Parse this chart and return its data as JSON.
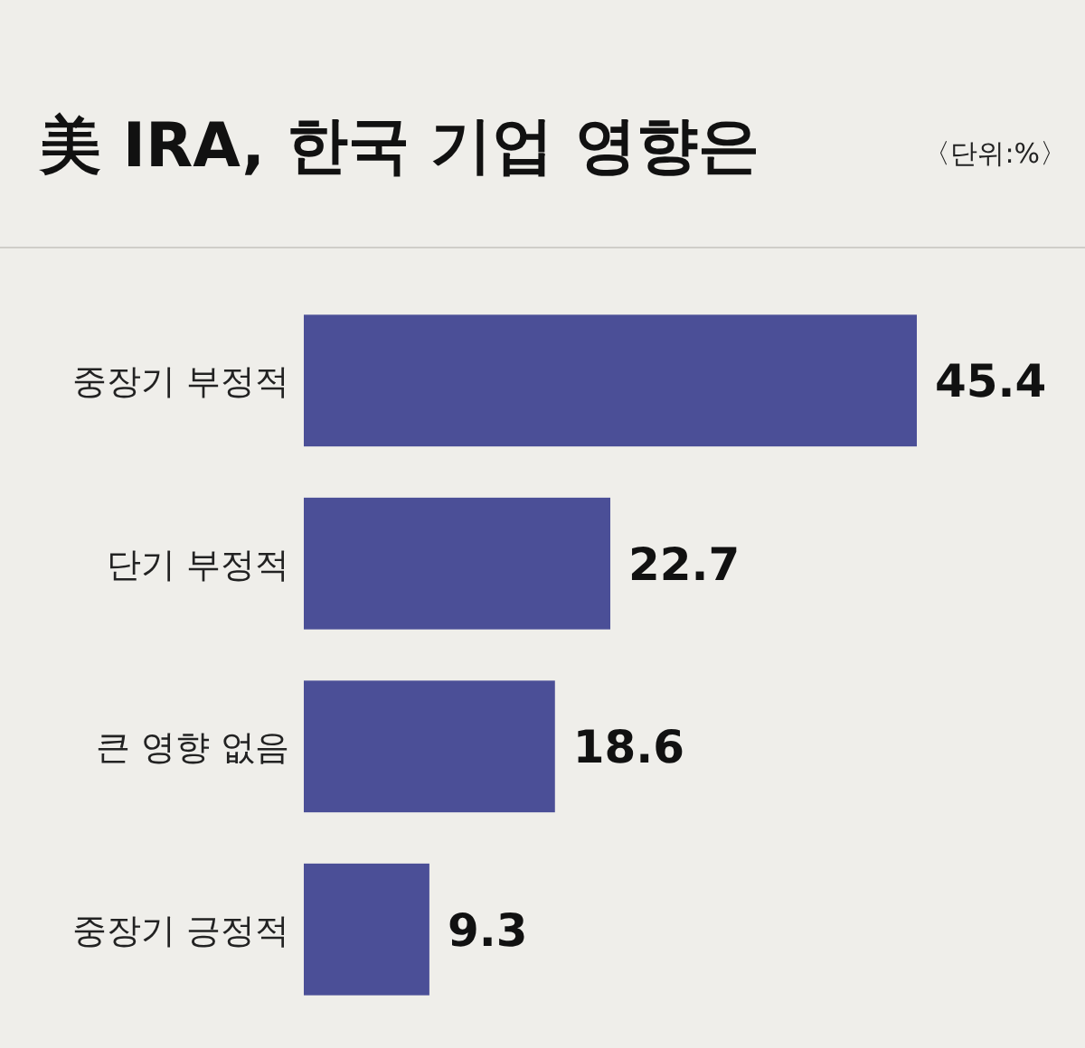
{
  "chart_data": {
    "type": "bar",
    "orientation": "horizontal",
    "title": "美 IRA, 한국 기업 영향은",
    "annotations": [
      "〈단위:%〉"
    ],
    "categories": [
      "중장기 부정적",
      "단기 부정적",
      "큰 영향 없음",
      "중장기 긍정적"
    ],
    "values": [
      45.4,
      22.7,
      18.6,
      9.3
    ],
    "color": "#4b4f97",
    "data_labels": true
  }
}
